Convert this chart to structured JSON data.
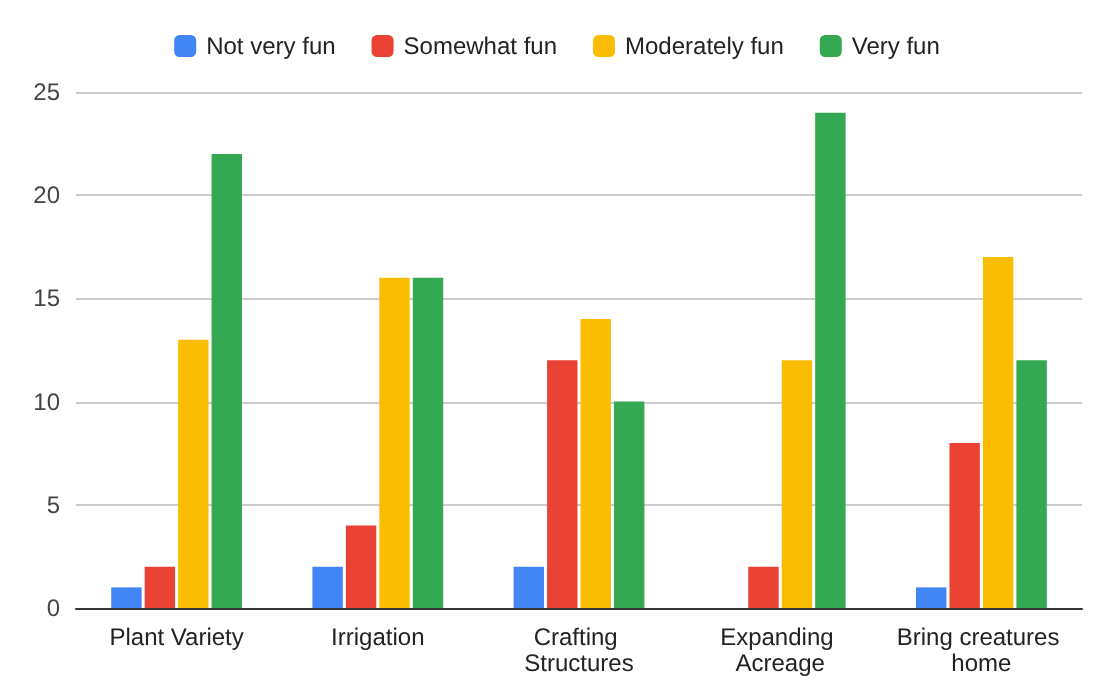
{
  "chart_data": {
    "type": "bar",
    "categories": [
      "Plant Variety",
      "Irrigation",
      "Crafting Structures",
      "Expanding Acreage",
      "Bring creatures home"
    ],
    "series": [
      {
        "name": "Not very fun",
        "color": "#4285f4",
        "values": [
          1,
          2,
          2,
          0,
          1
        ]
      },
      {
        "name": "Somewhat fun",
        "color": "#ea4335",
        "values": [
          2,
          4,
          12,
          2,
          8
        ]
      },
      {
        "name": "Moderately fun",
        "color": "#fbbc04",
        "values": [
          13,
          16,
          14,
          12,
          17
        ]
      },
      {
        "name": "Very fun",
        "color": "#34a853",
        "values": [
          22,
          16,
          10,
          24,
          12
        ]
      }
    ],
    "ylim": [
      0,
      25
    ],
    "yticks": [
      0,
      5,
      10,
      15,
      20,
      25
    ],
    "grid": "y",
    "legend": "top"
  }
}
